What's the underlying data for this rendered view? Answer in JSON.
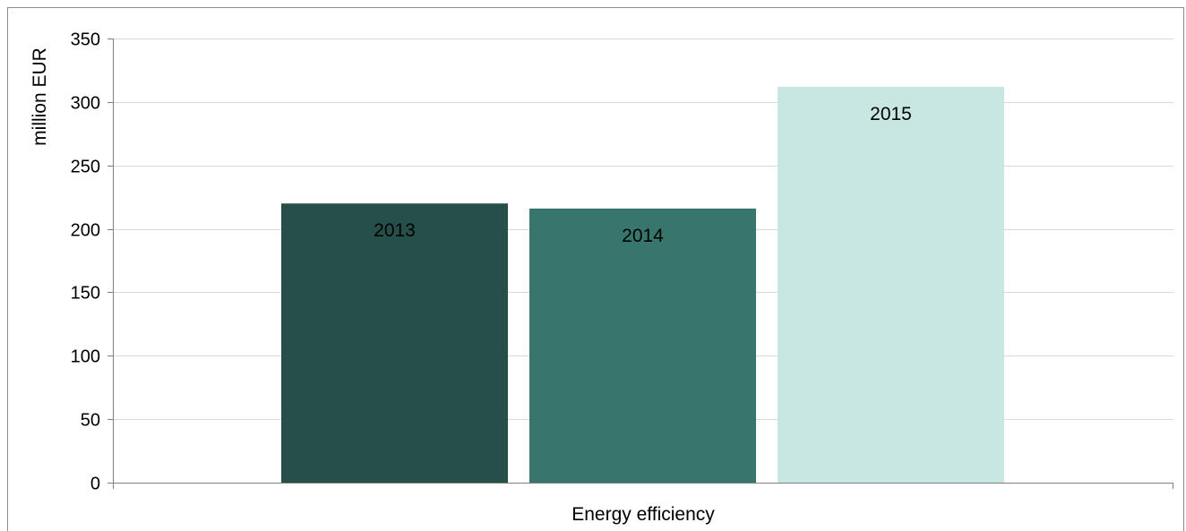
{
  "chart_data": {
    "type": "bar",
    "categories": [
      "Energy efficiency"
    ],
    "series": [
      {
        "name": "2013",
        "values": [
          220
        ],
        "color": "#264f4a"
      },
      {
        "name": "2014",
        "values": [
          216
        ],
        "color": "#37756d"
      },
      {
        "name": "2015",
        "values": [
          312
        ],
        "color": "#c8e6e2"
      }
    ],
    "ylabel": "million EUR",
    "xlabel": "",
    "ylim": [
      0,
      350
    ],
    "yticks": [
      0,
      50,
      100,
      150,
      200,
      250,
      300,
      350
    ],
    "grid": true,
    "legend": "none",
    "data_labels": "series-name-inside-bar"
  }
}
